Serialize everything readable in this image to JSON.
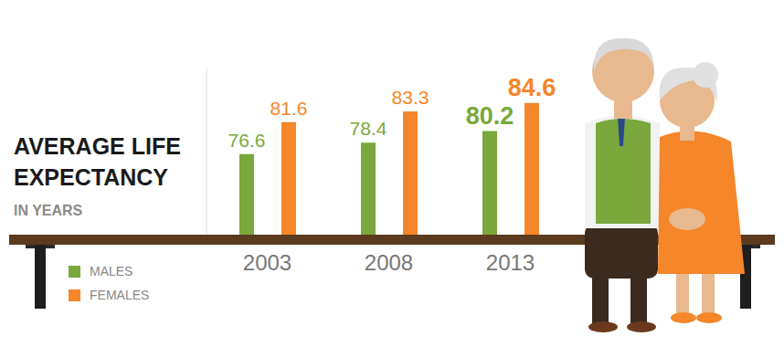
{
  "chart_data": {
    "type": "bar",
    "title": "AVERAGE LIFE EXPECTANCY",
    "subtitle": "IN YEARS",
    "categories": [
      "2003",
      "2008",
      "2013"
    ],
    "series": [
      {
        "name": "MALES",
        "color": "#7aa83c",
        "values": [
          76.6,
          78.4,
          80.2
        ]
      },
      {
        "name": "FEMALES",
        "color": "#f5862a",
        "values": [
          81.6,
          83.3,
          84.6
        ]
      }
    ],
    "ylim": [
      64,
      90
    ],
    "yticks": [],
    "data_labels": true,
    "tick_labels": "x",
    "grid": false,
    "legend": "bottom-left"
  }
}
